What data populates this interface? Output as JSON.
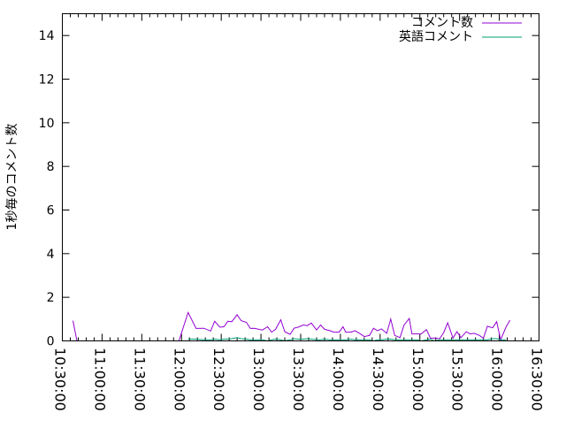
{
  "chart_data": {
    "type": "line",
    "title": "",
    "xlabel": "",
    "ylabel": "1秒毎のコメント数",
    "xlim": [
      "10:30:00",
      "16:30:00"
    ],
    "ylim": [
      0,
      15
    ],
    "x_ticks": [
      "10:30:00",
      "11:00:00",
      "11:30:00",
      "12:00:00",
      "12:30:00",
      "13:00:00",
      "13:30:00",
      "14:00:00",
      "14:30:00",
      "15:00:00",
      "15:30:00",
      "16:00:00",
      "16:30:00"
    ],
    "y_ticks": [
      "0",
      "2",
      "4",
      "6",
      "8",
      "10",
      "12",
      "14"
    ],
    "grid": false,
    "legend_position": "top-right",
    "series": [
      {
        "name": "コメント数",
        "color": "#9400D3",
        "points": [
          [
            "10:38:00",
            0.93
          ],
          [
            "10:41:00",
            0
          ],
          null,
          [
            "11:47:00",
            0
          ],
          [
            "11:50:00",
            0
          ],
          [
            "11:58:00",
            0
          ],
          [
            "12:05:00",
            1.3
          ],
          [
            "12:11:00",
            0.57
          ],
          [
            "12:17:00",
            0.58
          ],
          [
            "12:22:00",
            0.45
          ],
          [
            "12:25:00",
            0.9
          ],
          [
            "12:29:00",
            0.63
          ],
          [
            "12:32:00",
            0.65
          ],
          [
            "12:35:00",
            0.9
          ],
          [
            "12:38:00",
            0.88
          ],
          [
            "12:42:00",
            1.2
          ],
          [
            "12:45:00",
            0.93
          ],
          [
            "12:49:00",
            0.85
          ],
          [
            "12:52:00",
            0.57
          ],
          [
            "12:55:00",
            0.58
          ],
          [
            "13:01:00",
            0.5
          ],
          [
            "13:05:00",
            0.65
          ],
          [
            "13:08:00",
            0.4
          ],
          [
            "13:11:00",
            0.53
          ],
          [
            "13:15:00",
            0.97
          ],
          [
            "13:18:00",
            0.42
          ],
          [
            "13:22:00",
            0.3
          ],
          [
            "13:25:00",
            0.58
          ],
          [
            "13:28:00",
            0.63
          ],
          [
            "13:32:00",
            0.73
          ],
          [
            "13:35:00",
            0.7
          ],
          [
            "13:38:00",
            0.82
          ],
          [
            "13:42:00",
            0.5
          ],
          [
            "13:45:00",
            0.73
          ],
          [
            "13:48:00",
            0.53
          ],
          [
            "13:52:00",
            0.47
          ],
          [
            "13:55:00",
            0.4
          ],
          [
            "13:59:00",
            0.4
          ],
          [
            "14:02:00",
            0.65
          ],
          [
            "14:04:00",
            0.4
          ],
          [
            "14:08:00",
            0.4
          ],
          [
            "14:11:00",
            0.47
          ],
          [
            "14:15:00",
            0.32
          ],
          [
            "14:18:00",
            0.2
          ],
          [
            "14:22:00",
            0.25
          ],
          [
            "14:25:00",
            0.58
          ],
          [
            "14:28:00",
            0.47
          ],
          [
            "14:31:00",
            0.55
          ],
          [
            "14:35:00",
            0.35
          ],
          [
            "14:38:00",
            1.0
          ],
          [
            "14:41:00",
            0.25
          ],
          [
            "14:45:00",
            0.15
          ],
          [
            "14:48:00",
            0.72
          ],
          [
            "14:52:00",
            1.03
          ],
          [
            "14:54:00",
            0.32
          ],
          [
            "14:58:00",
            0.32
          ],
          [
            "15:01:00",
            0.32
          ],
          [
            "15:05:00",
            0.52
          ],
          [
            "15:08:00",
            0.12
          ],
          [
            "15:11:00",
            0.13
          ],
          [
            "15:15:00",
            0.1
          ],
          [
            "15:18:00",
            0.38
          ],
          [
            "15:21:00",
            0.83
          ],
          [
            "15:25:00",
            0.13
          ],
          [
            "15:28:00",
            0.42
          ],
          [
            "15:31:00",
            0.15
          ],
          [
            "15:35:00",
            0.42
          ],
          [
            "15:38:00",
            0.32
          ],
          [
            "15:41:00",
            0.35
          ],
          [
            "15:45:00",
            0.25
          ],
          [
            "15:48:00",
            0.12
          ],
          [
            "15:51:00",
            0.67
          ],
          [
            "15:55:00",
            0.6
          ],
          [
            "15:58:00",
            0.88
          ],
          [
            "16:01:00",
            0.05
          ],
          [
            "16:05:00",
            0.63
          ],
          [
            "16:08:00",
            0.95
          ]
        ]
      },
      {
        "name": "英語コメント",
        "color": "#009E73",
        "points": [
          [
            "12:05:00",
            0.08
          ],
          [
            "12:11:00",
            0.08
          ],
          [
            "12:17:00",
            0.05
          ],
          [
            "12:22:00",
            0.05
          ],
          [
            "12:25:00",
            0.08
          ],
          [
            "12:29:00",
            0.05
          ],
          [
            "12:32:00",
            0.08
          ],
          [
            "12:35:00",
            0.08
          ],
          [
            "12:38:00",
            0.1
          ],
          [
            "12:42:00",
            0.15
          ],
          [
            "12:45:00",
            0.1
          ],
          [
            "12:49:00",
            0.08
          ],
          [
            "12:52:00",
            0.05
          ],
          [
            "12:55:00",
            0.05
          ],
          [
            "13:01:00",
            0.05
          ],
          [
            "13:05:00",
            0.0
          ],
          [
            "13:08:00",
            0.05
          ],
          [
            "13:11:00",
            0.08
          ],
          [
            "13:15:00",
            0.05
          ],
          [
            "13:18:00",
            0.0
          ],
          [
            "13:22:00",
            0.05
          ],
          [
            "13:25:00",
            0.1
          ],
          [
            "13:28:00",
            0.08
          ],
          [
            "13:32:00",
            0.08
          ],
          [
            "13:35:00",
            0.1
          ],
          [
            "13:38:00",
            0.08
          ],
          [
            "13:42:00",
            0.05
          ],
          [
            "13:45:00",
            0.05
          ],
          [
            "13:48:00",
            0.08
          ],
          [
            "13:52:00",
            0.05
          ],
          [
            "13:55:00",
            0.05
          ],
          [
            "13:59:00",
            0.05
          ],
          [
            "14:02:00",
            0.05
          ],
          [
            "14:04:00",
            0.05
          ],
          [
            "14:08:00",
            0.08
          ],
          [
            "14:11:00",
            0.05
          ],
          [
            "14:15:00",
            0.05
          ],
          [
            "14:18:00",
            0.05
          ],
          [
            "14:22:00",
            0.05
          ],
          [
            "14:25:00",
            0.0
          ],
          [
            "14:28:00",
            0.05
          ],
          [
            "14:31:00",
            0.05
          ],
          [
            "14:35:00",
            0.08
          ],
          [
            "14:38:00",
            0.08
          ],
          [
            "14:41:00",
            0.05
          ],
          [
            "14:45:00",
            0.05
          ],
          [
            "14:48:00",
            0.05
          ],
          [
            "14:52:00",
            0.05
          ],
          [
            "14:54:00",
            0.05
          ],
          [
            "14:58:00",
            0.05
          ],
          [
            "15:01:00",
            0.0
          ],
          [
            "15:05:00",
            0.05
          ],
          [
            "15:08:00",
            0.08
          ],
          [
            "15:11:00",
            0.0
          ],
          [
            "15:15:00",
            0.05
          ],
          [
            "15:18:00",
            0.05
          ],
          [
            "15:21:00",
            0.05
          ],
          [
            "15:25:00",
            0.05
          ],
          [
            "15:28:00",
            0.05
          ],
          [
            "15:31:00",
            0.05
          ],
          [
            "15:35:00",
            0.05
          ],
          [
            "15:38:00",
            0.05
          ],
          [
            "15:41:00",
            0.05
          ],
          [
            "15:45:00",
            0.05
          ],
          [
            "15:48:00",
            0.05
          ],
          [
            "15:51:00",
            0.05
          ],
          [
            "15:55:00",
            0.1
          ],
          [
            "15:58:00",
            0.1
          ],
          [
            "16:01:00",
            0.05
          ],
          [
            "16:05:00",
            0.05
          ]
        ]
      }
    ]
  }
}
